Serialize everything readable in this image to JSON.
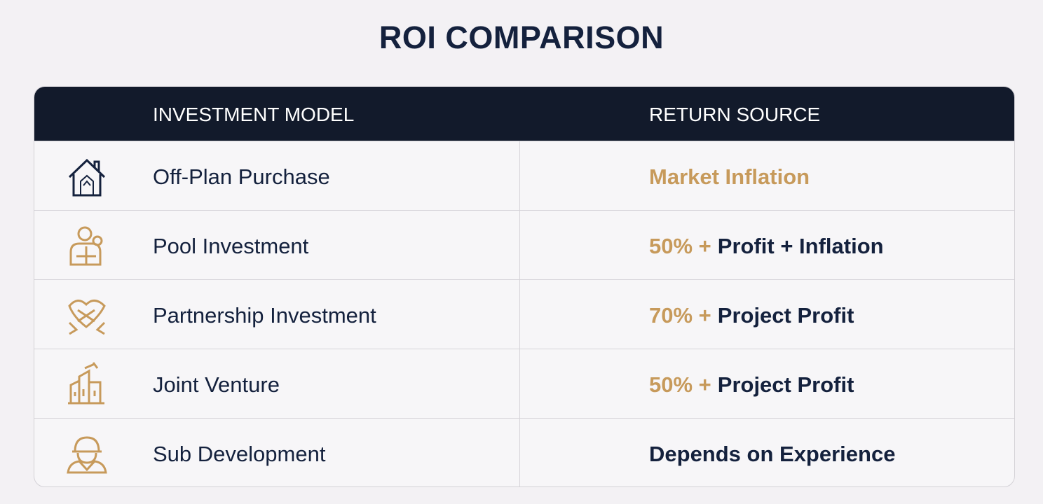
{
  "header": {
    "title": "ROI COMPARISON"
  },
  "table": {
    "columns": [
      "INVESTMENT MODEL",
      "RETURN SOURCE"
    ],
    "rows": [
      {
        "model": "Off-Plan Purchase",
        "return": {
          "accent": "Market Inflation"
        }
      },
      {
        "model": "Pool Investment",
        "return": {
          "accent": "50% +",
          "text": "Profit + Inflation"
        }
      },
      {
        "model": "Partnership Investment",
        "return": {
          "accent": "70% +",
          "text": "Project Profit"
        }
      },
      {
        "model": "Joint Venture",
        "return": {
          "accent": "50% +",
          "text": "Project Profit"
        }
      },
      {
        "model": "Sub Development",
        "return": {
          "text": "Depends on Experience"
        }
      }
    ]
  }
}
